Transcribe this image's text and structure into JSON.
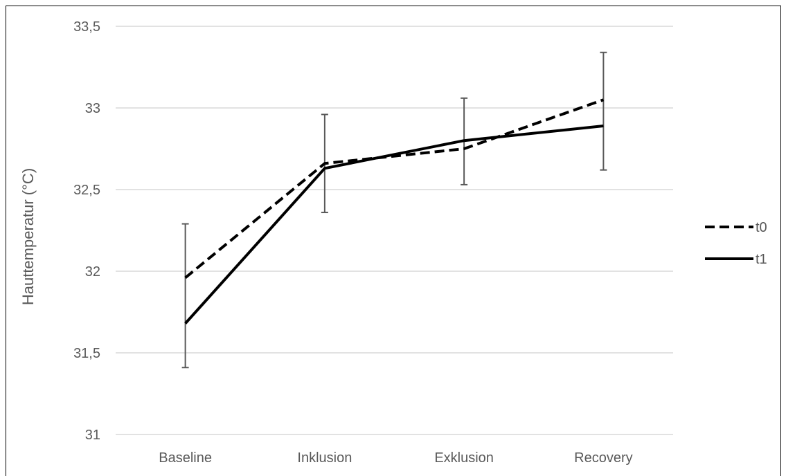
{
  "chart_data": {
    "type": "line",
    "categories": [
      "Baseline",
      "Inklusion",
      "Exklusion",
      "Recovery"
    ],
    "series": [
      {
        "name": "t0",
        "style": "dashed",
        "color": "#000000",
        "values": [
          31.96,
          32.66,
          32.75,
          33.05
        ]
      },
      {
        "name": "t1",
        "style": "solid",
        "color": "#000000",
        "values": [
          31.68,
          32.63,
          32.8,
          32.89
        ]
      }
    ],
    "error_bars": [
      {
        "category": "Baseline",
        "low": 31.41,
        "high": 32.29
      },
      {
        "category": "Inklusion",
        "low": 32.36,
        "high": 32.96
      },
      {
        "category": "Exklusion",
        "low": 32.53,
        "high": 33.06
      },
      {
        "category": "Recovery",
        "low": 32.62,
        "high": 33.34
      }
    ],
    "ylim": [
      31,
      33.5
    ],
    "yticks": [
      "31",
      "31,5",
      "32",
      "32,5",
      "33",
      "33,5"
    ],
    "ytick_values": [
      31,
      31.5,
      32,
      32.5,
      33,
      33.5
    ],
    "ylabel": "Hauttemperatur (°C)",
    "xlabel": "",
    "title": "",
    "grid": "horizontal",
    "legend_position": "right",
    "colors": {
      "grid": "#d9d9d9",
      "text": "#595959",
      "errorbar": "#595959",
      "line": "#000000"
    }
  }
}
